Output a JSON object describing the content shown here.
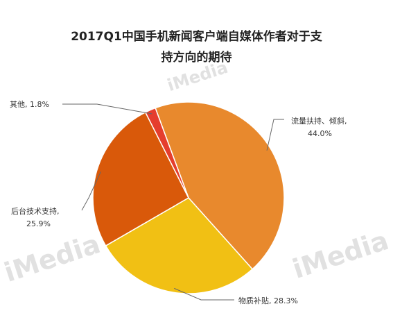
{
  "chart_data": {
    "type": "pie",
    "title": [
      "2017Q1中国手机新闻客户端自媒体作者对于支",
      "持方向的期待"
    ],
    "slices": [
      {
        "label": "流量扶持、倾斜",
        "value": 44.0,
        "display": "44.0%",
        "color": "#E8892D"
      },
      {
        "label": "物质补贴",
        "value": 28.3,
        "display": "28.3%",
        "color": "#F1C014"
      },
      {
        "label": "后台技术支持",
        "value": 25.9,
        "display": "25.9%",
        "color": "#D9590A"
      },
      {
        "label": "其他",
        "value": 1.8,
        "display": "1.8%",
        "color": "#E53E2E"
      }
    ]
  },
  "watermark": "iMedia"
}
